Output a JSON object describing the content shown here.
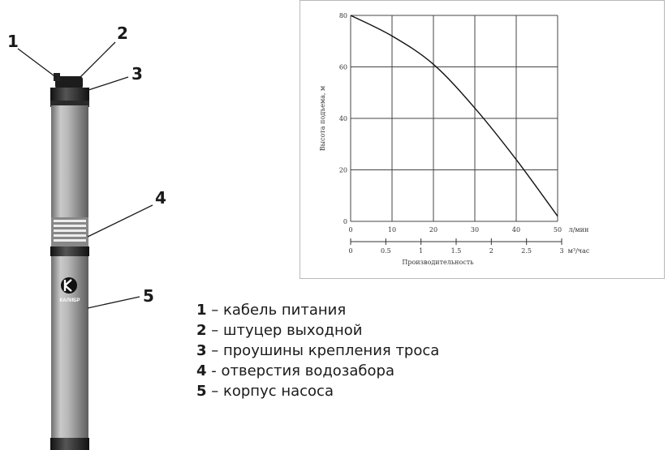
{
  "callouts": [
    "1",
    "2",
    "3",
    "4",
    "5"
  ],
  "brand": "КАЛИБР",
  "legend": [
    {
      "num": "1",
      "sep": " – ",
      "text": "кабель питания"
    },
    {
      "num": "2",
      "sep": " – ",
      "text": "штуцер выходной"
    },
    {
      "num": "3",
      "sep": " – ",
      "text": "проушины крепления троса"
    },
    {
      "num": "4",
      "sep": " - ",
      "text": "отверстия водозабора"
    },
    {
      "num": "5",
      "sep": " – ",
      "text": "корпус насоса"
    }
  ],
  "chart_data": {
    "type": "line",
    "ylabel": "Высота подъема, м",
    "xlabel": "Производительность",
    "x": [
      0,
      10,
      20,
      30,
      40,
      50
    ],
    "y": [
      80,
      72,
      61,
      44,
      24,
      2
    ],
    "xlim": [
      0,
      50
    ],
    "ylim": [
      0,
      80
    ],
    "y_ticks": [
      "0",
      "20",
      "40",
      "60",
      "80"
    ],
    "x_ticks_primary": [
      "0",
      "10",
      "20",
      "30",
      "40",
      "50"
    ],
    "x_unit_primary": "л/мин",
    "x_ticks_secondary": [
      "0",
      "0.5",
      "1",
      "1.5",
      "2",
      "2.5",
      "3"
    ],
    "x_unit_secondary": "м³/час",
    "grid": true
  }
}
